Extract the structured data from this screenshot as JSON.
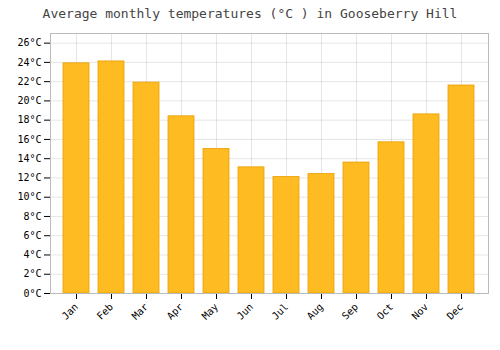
{
  "chart_data": {
    "type": "bar",
    "title": "Average monthly temperatures (°C ) in Gooseberry Hill",
    "categories": [
      "Jan",
      "Feb",
      "Mar",
      "Apr",
      "May",
      "Jun",
      "Jul",
      "Aug",
      "Sep",
      "Oct",
      "Nov",
      "Dec"
    ],
    "values": [
      23.9,
      24.1,
      21.9,
      18.4,
      15.0,
      13.1,
      12.1,
      12.4,
      13.6,
      15.7,
      18.6,
      21.6
    ],
    "color": "#FFBB22",
    "ylim": [
      0,
      27
    ],
    "yticks": [
      {
        "value": 0,
        "label": "0°C"
      },
      {
        "value": 2,
        "label": "2°C"
      },
      {
        "value": 4,
        "label": "4°C"
      },
      {
        "value": 6,
        "label": "6°C"
      },
      {
        "value": 8,
        "label": "8°C"
      },
      {
        "value": 10,
        "label": "10°C"
      },
      {
        "value": 12,
        "label": "12°C"
      },
      {
        "value": 14,
        "label": "14°C"
      },
      {
        "value": 16,
        "label": "16°C"
      },
      {
        "value": 18,
        "label": "18°C"
      },
      {
        "value": 20,
        "label": "20°C"
      },
      {
        "value": 22,
        "label": "22°C"
      },
      {
        "value": 24,
        "label": "24°C"
      },
      {
        "value": 26,
        "label": "26°C"
      }
    ],
    "grid": true
  }
}
